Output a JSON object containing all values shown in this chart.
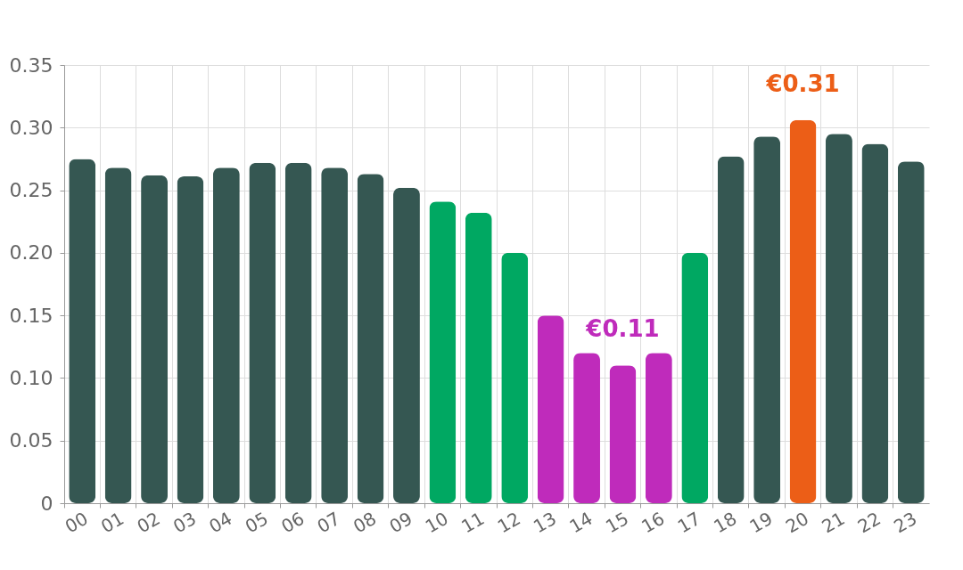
{
  "chart_data": {
    "type": "bar",
    "categories": [
      "00",
      "01",
      "02",
      "03",
      "04",
      "05",
      "06",
      "07",
      "08",
      "09",
      "10",
      "11",
      "12",
      "13",
      "14",
      "15",
      "16",
      "17",
      "18",
      "19",
      "20",
      "21",
      "22",
      "23"
    ],
    "values": [
      0.275,
      0.268,
      0.262,
      0.261,
      0.268,
      0.272,
      0.272,
      0.268,
      0.263,
      0.252,
      0.241,
      0.232,
      0.2,
      0.15,
      0.12,
      0.11,
      0.12,
      0.2,
      0.277,
      0.293,
      0.306,
      0.295,
      0.287,
      0.273
    ],
    "colors": [
      "#355752",
      "#355752",
      "#355752",
      "#355752",
      "#355752",
      "#355752",
      "#355752",
      "#355752",
      "#355752",
      "#355752",
      "#00a862",
      "#00a862",
      "#00a862",
      "#bf2bbb",
      "#bf2bbb",
      "#bf2bbb",
      "#bf2bbb",
      "#00a862",
      "#355752",
      "#355752",
      "#ec5e17",
      "#355752",
      "#355752",
      "#355752"
    ],
    "ylim": [
      0,
      0.35
    ],
    "yticks": [
      0,
      0.05,
      {
        "value": 0.1,
        "label": "0.10"
      },
      0.15,
      {
        "value": 0.2,
        "label": "0.20"
      },
      0.25,
      {
        "value": 0.3,
        "label": "0.30"
      },
      0.35
    ],
    "grid": true,
    "annotations": [
      {
        "text": "€0.11",
        "x": "15",
        "y": 0.11
      },
      {
        "text": "€0.31",
        "x": "20",
        "y": 0.306
      }
    ]
  }
}
